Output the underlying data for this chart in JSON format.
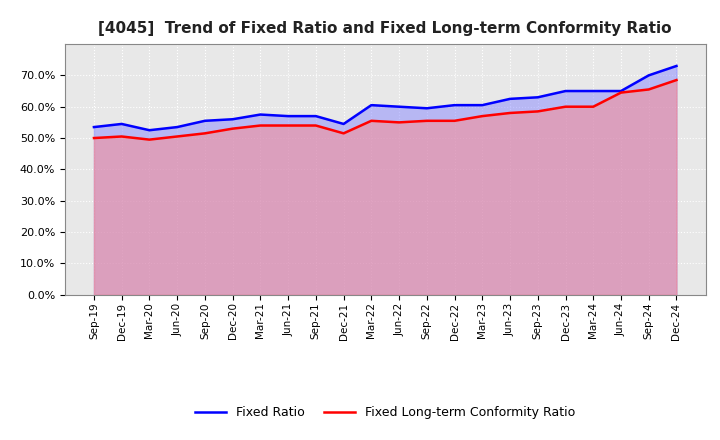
{
  "title": "[4045]  Trend of Fixed Ratio and Fixed Long-term Conformity Ratio",
  "x_labels": [
    "Sep-19",
    "Dec-19",
    "Mar-20",
    "Jun-20",
    "Sep-20",
    "Dec-20",
    "Mar-21",
    "Jun-21",
    "Sep-21",
    "Dec-21",
    "Mar-22",
    "Jun-22",
    "Sep-22",
    "Dec-22",
    "Mar-23",
    "Jun-23",
    "Sep-23",
    "Dec-23",
    "Mar-24",
    "Jun-24",
    "Sep-24",
    "Dec-24"
  ],
  "fixed_ratio": [
    53.5,
    54.5,
    52.5,
    53.5,
    55.5,
    56.0,
    57.5,
    57.0,
    57.0,
    54.5,
    60.5,
    60.0,
    59.5,
    60.5,
    60.5,
    62.5,
    63.0,
    65.0,
    65.0,
    65.0,
    70.0,
    73.0
  ],
  "fixed_lt_ratio": [
    50.0,
    50.5,
    49.5,
    50.5,
    51.5,
    53.0,
    54.0,
    54.0,
    54.0,
    51.5,
    55.5,
    55.0,
    55.5,
    55.5,
    57.0,
    58.0,
    58.5,
    60.0,
    60.0,
    64.5,
    65.5,
    68.5
  ],
  "fixed_ratio_color": "#0000FF",
  "fixed_ratio_fill": "#8888FF",
  "fixed_lt_ratio_color": "#FF0000",
  "fixed_lt_ratio_fill": "#FF8888",
  "ylim": [
    0.0,
    80.0
  ],
  "yticks": [
    0.0,
    10.0,
    20.0,
    30.0,
    40.0,
    50.0,
    60.0,
    70.0
  ],
  "plot_bg_color": "#E8E8E8",
  "fig_bg_color": "#FFFFFF",
  "grid_color": "#FFFFFF",
  "legend_fixed_ratio": "Fixed Ratio",
  "legend_fixed_lt_ratio": "Fixed Long-term Conformity Ratio"
}
